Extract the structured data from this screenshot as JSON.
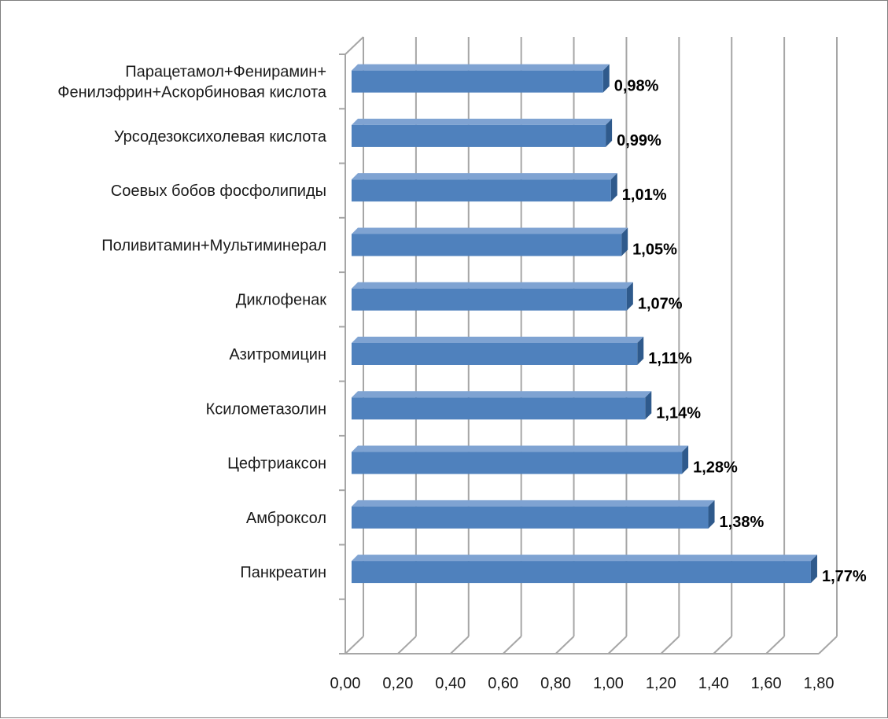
{
  "chart_data": {
    "type": "bar",
    "orientation": "horizontal",
    "three_d": true,
    "categories": [
      "Парацетамол+Фенирамин+\nФенилэфрин+Аскорбиновая кислота",
      "Урсодезоксихолевая кислота",
      "Соевых бобов фосфолипиды",
      "Поливитамин+Мультиминерал",
      "Диклофенак",
      "Азитромицин",
      "Ксилометазолин",
      "Цефтриаксон",
      "Амброксол",
      "Панкреатин"
    ],
    "values": [
      0.98,
      0.99,
      1.01,
      1.05,
      1.07,
      1.11,
      1.14,
      1.28,
      1.38,
      1.77
    ],
    "data_labels": [
      "0,98%",
      "0,99%",
      "1,01%",
      "1,05%",
      "1,07%",
      "1,11%",
      "1,14%",
      "1,28%",
      "1,38%",
      "1,77%"
    ],
    "x_ticks": [
      "0,00",
      "0,20",
      "0,40",
      "0,60",
      "0,80",
      "1,00",
      "1,20",
      "1,40",
      "1,60",
      "1,80"
    ],
    "xlim": [
      0,
      1.8
    ],
    "grid": "vertical",
    "legend": "none",
    "bar_color": "#4f81bd",
    "bar_side_color": "#2f5a8c",
    "bar_top_color": "#7fa3d2",
    "grid_color": "#a6a6a6"
  }
}
